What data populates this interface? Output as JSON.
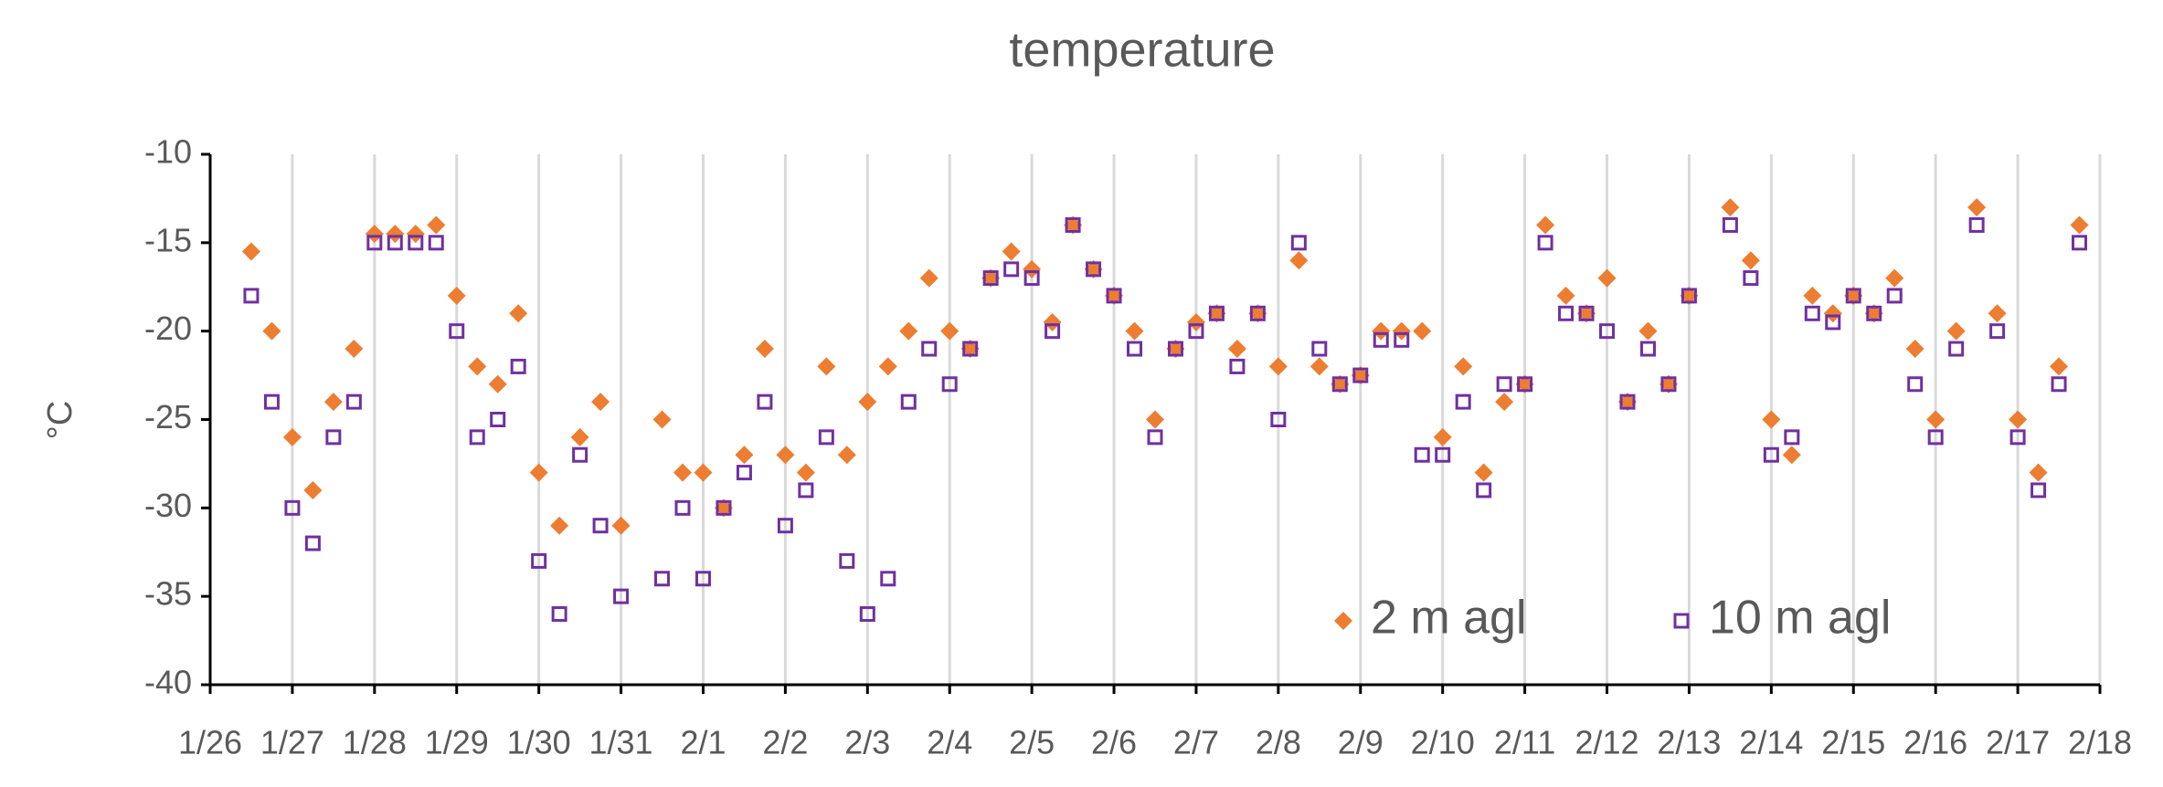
{
  "chart_data": {
    "type": "scatter",
    "title": "temperature",
    "y_label": "°C",
    "x": [
      0.5,
      0.75,
      1,
      1.25,
      1.5,
      1.75,
      2,
      2.25,
      2.5,
      2.75,
      3,
      3.25,
      3.5,
      3.75,
      4,
      4.25,
      4.5,
      4.75,
      5,
      5.25,
      5.5,
      5.75,
      6,
      6.25,
      6.5,
      6.75,
      7,
      7.25,
      7.5,
      7.75,
      8,
      8.25,
      8.5,
      8.75,
      9,
      9.25,
      9.5,
      9.75,
      10,
      10.25,
      10.5,
      10.75,
      11,
      11.25,
      11.5,
      11.75,
      12,
      12.25,
      12.5,
      12.75,
      13,
      13.25,
      13.5,
      13.75,
      14,
      14.25,
      14.5,
      14.75,
      15,
      15.25,
      15.5,
      15.75,
      16,
      16.25,
      16.5,
      16.75,
      17,
      17.25,
      17.5,
      17.75,
      18,
      18.25,
      18.5,
      18.75,
      19,
      19.25,
      19.5,
      19.75,
      20,
      20.25,
      20.5,
      20.75,
      21,
      21.25,
      21.5,
      21.75,
      22,
      22.25,
      22.5,
      22.75
    ],
    "series": [
      {
        "name": "2 m agl",
        "color": "#ed7d31",
        "marker": "diamond",
        "values": [
          -15.5,
          -20,
          -26,
          -29,
          -24,
          -21,
          -14.5,
          -14.5,
          -14.5,
          -14,
          -18,
          -22,
          -23,
          -19,
          -28,
          -31,
          -26,
          -24,
          -31,
          null,
          -25,
          -28,
          -28,
          -30,
          -27,
          -21,
          -27,
          -28,
          -22,
          -27,
          -24,
          -22,
          -20,
          -17,
          -20,
          -21,
          -17,
          -15.5,
          -16.5,
          -19.5,
          -14,
          -16.5,
          -18,
          -20,
          -25,
          -21,
          -19.5,
          -19,
          -21,
          -19,
          -22,
          -16,
          -22,
          -23,
          -22.5,
          -20,
          -20,
          -20,
          -26,
          -22,
          -28,
          -24,
          -23,
          -14,
          -18,
          -19,
          -17,
          -24,
          -20,
          -23,
          -18,
          null,
          -13,
          -16,
          -25,
          -27,
          -18,
          -19,
          -18,
          -19,
          -17,
          -21,
          -25,
          -20,
          -13,
          -19,
          -25,
          -28,
          -22,
          -14
        ]
      },
      {
        "name": "10 m agl",
        "color": "#7030a0",
        "marker": "square",
        "values": [
          -18,
          -24,
          -30,
          -32,
          -26,
          -24,
          -15,
          -15,
          -15,
          -15,
          -20,
          -26,
          -25,
          -22,
          -33,
          -36,
          -27,
          -31,
          -35,
          null,
          -34,
          -30,
          -34,
          -30,
          -28,
          -24,
          -31,
          -29,
          -26,
          -33,
          -36,
          -34,
          -24,
          -21,
          -23,
          -21,
          -17,
          -16.5,
          -17,
          -20,
          -14,
          -16.5,
          -18,
          -21,
          -26,
          -21,
          -20,
          -19,
          -22,
          -19,
          -25,
          -15,
          -21,
          -23,
          -22.5,
          -20.5,
          -20.5,
          -27,
          -27,
          -24,
          -29,
          -23,
          -23,
          -15,
          -19,
          -19,
          -20,
          -24,
          -21,
          -23,
          -18,
          null,
          -14,
          -17,
          -27,
          -26,
          -19,
          -19.5,
          -18,
          -19,
          -18,
          -23,
          -26,
          -21,
          -14,
          -20,
          -26,
          -29,
          -23,
          -15
        ]
      }
    ],
    "xlim": [
      0,
      23
    ],
    "xticks": [
      {
        "value": 0,
        "label": "1/26"
      },
      {
        "value": 1,
        "label": "1/27"
      },
      {
        "value": 2,
        "label": "1/28"
      },
      {
        "value": 3,
        "label": "1/29"
      },
      {
        "value": 4,
        "label": "1/30"
      },
      {
        "value": 5,
        "label": "1/31"
      },
      {
        "value": 6,
        "label": "2/1"
      },
      {
        "value": 7,
        "label": "2/2"
      },
      {
        "value": 8,
        "label": "2/3"
      },
      {
        "value": 9,
        "label": "2/4"
      },
      {
        "value": 10,
        "label": "2/5"
      },
      {
        "value": 11,
        "label": "2/6"
      },
      {
        "value": 12,
        "label": "2/7"
      },
      {
        "value": 13,
        "label": "2/8"
      },
      {
        "value": 14,
        "label": "2/9"
      },
      {
        "value": 15,
        "label": "2/10"
      },
      {
        "value": 16,
        "label": "2/11"
      },
      {
        "value": 17,
        "label": "2/12"
      },
      {
        "value": 18,
        "label": "2/13"
      },
      {
        "value": 19,
        "label": "2/14"
      },
      {
        "value": 20,
        "label": "2/15"
      },
      {
        "value": 21,
        "label": "2/16"
      },
      {
        "value": 22,
        "label": "2/17"
      },
      {
        "value": 23,
        "label": "2/18"
      }
    ],
    "ylim": [
      -40,
      -10
    ],
    "yticks": [
      -40,
      -35,
      -30,
      -25,
      -20,
      -15,
      -10
    ],
    "grid": "x",
    "legend": "lower right"
  }
}
